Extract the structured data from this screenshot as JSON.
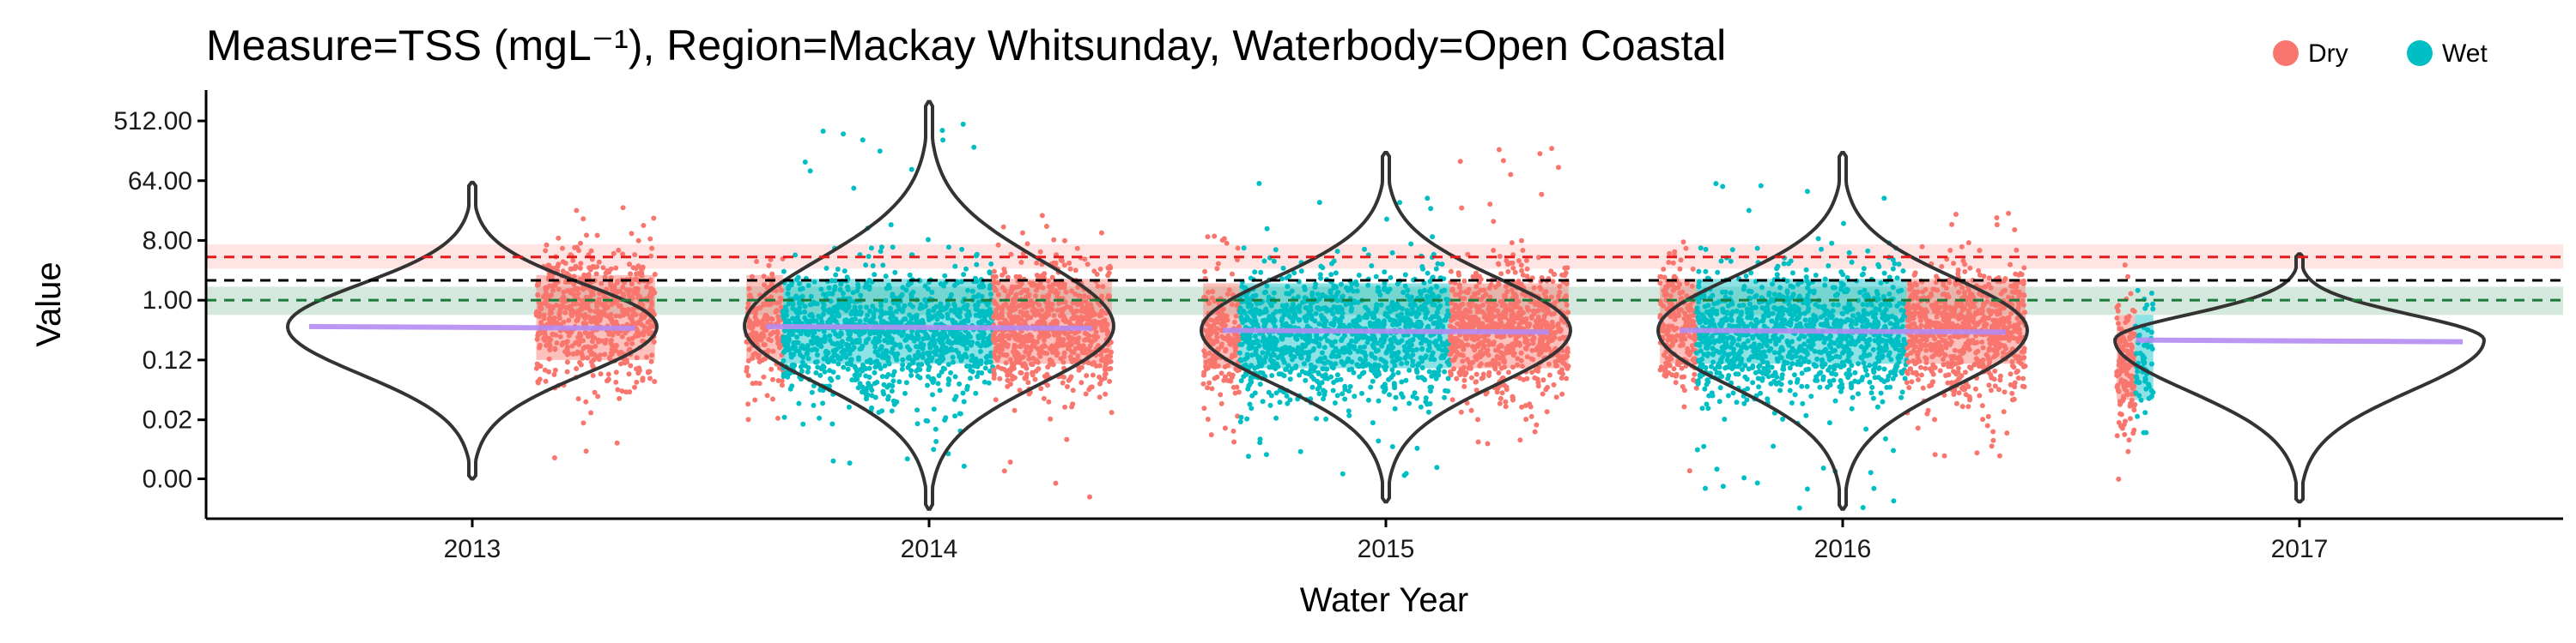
{
  "chart_data": {
    "type": "scatter",
    "title": "Measure=TSS (mgL⁻¹), Region=Mackay Whitsunday, Waterbody=Open Coastal",
    "xlabel": "Water Year",
    "ylabel": "Value",
    "x_scale": "water year",
    "y_scale": "log2",
    "x_ticks": [
      "2013",
      "2014",
      "2015",
      "2016",
      "2017"
    ],
    "y_ticks": [
      {
        "label": "512.00",
        "value": 512
      },
      {
        "label": "64.00",
        "value": 64
      },
      {
        "label": "8.00",
        "value": 8
      },
      {
        "label": "1.00",
        "value": 1
      },
      {
        "label": "0.12",
        "value": 0.125
      },
      {
        "label": "0.02",
        "value": 0.0156
      },
      {
        "label": "0.00",
        "value": 0.002
      }
    ],
    "ylim": [
      0.0005,
      1500
    ],
    "grid": false,
    "legend": {
      "position": "top-right",
      "entries": [
        {
          "name": "Dry",
          "color": "#F8766D"
        },
        {
          "name": "Wet",
          "color": "#00BFC4"
        }
      ]
    },
    "reference_lines": [
      {
        "color": "#e41a1c",
        "value": 4.5,
        "band": [
          3.0,
          7.0
        ],
        "band_color": "#F8766D",
        "style": "dashed"
      },
      {
        "color": "#000000",
        "value": 2.0,
        "style": "dashed"
      },
      {
        "color": "#1b7a3a",
        "value": 1.0,
        "band": [
          0.6,
          1.6
        ],
        "band_color": "#2E8B57",
        "style": "dashed"
      }
    ],
    "season_blocks": [
      {
        "season": "Dry",
        "start_year": 2013.14,
        "end_year": 2013.4,
        "median": 0.4
      },
      {
        "season": "Dry",
        "start_year": 2013.6,
        "end_year": 2013.68,
        "median": 0.4
      },
      {
        "season": "Wet",
        "start_year": 2013.68,
        "end_year": 2014.14,
        "median": 0.35
      },
      {
        "season": "Dry",
        "start_year": 2014.14,
        "end_year": 2014.4,
        "median": 0.35
      },
      {
        "season": "Dry",
        "start_year": 2014.6,
        "end_year": 2014.68,
        "median": 0.3
      },
      {
        "season": "Wet",
        "start_year": 2014.68,
        "end_year": 2015.14,
        "median": 0.3
      },
      {
        "season": "Dry",
        "start_year": 2015.14,
        "end_year": 2015.4,
        "median": 0.3
      },
      {
        "season": "Dry",
        "start_year": 2015.6,
        "end_year": 2015.68,
        "median": 0.35
      },
      {
        "season": "Wet",
        "start_year": 2015.68,
        "end_year": 2016.14,
        "median": 0.35
      },
      {
        "season": "Dry",
        "start_year": 2016.14,
        "end_year": 2016.4,
        "median": 0.35
      },
      {
        "season": "Dry",
        "start_year": 2016.6,
        "end_year": 2016.64,
        "median": 0.1
      },
      {
        "season": "Wet",
        "start_year": 2016.64,
        "end_year": 2016.68,
        "median": 0.1
      }
    ],
    "violins": [
      {
        "year": 2013,
        "median": 0.4,
        "low": 0.002,
        "high": 60
      },
      {
        "year": 2014,
        "median": 0.4,
        "low": 0.0007,
        "high": 1000
      },
      {
        "year": 2015,
        "median": 0.35,
        "low": 0.0009,
        "high": 170
      },
      {
        "year": 2016,
        "median": 0.35,
        "low": 0.0007,
        "high": 170
      },
      {
        "year": 2017,
        "median": 0.25,
        "low": 0.0009,
        "high": 5
      }
    ],
    "point_clouds": [
      {
        "season": "Dry",
        "start_year": 2013.14,
        "end_year": 2013.4,
        "center": 0.6,
        "low": 0.003,
        "high": 25,
        "count": 700
      },
      {
        "season": "Dry",
        "start_year": 2013.6,
        "end_year": 2013.68,
        "center": 0.3,
        "low": 0.003,
        "high": 8,
        "count": 180
      },
      {
        "season": "Wet",
        "start_year": 2013.68,
        "end_year": 2014.14,
        "center": 0.3,
        "low": 0.003,
        "high": 600,
        "count": 1200
      },
      {
        "season": "Dry",
        "start_year": 2014.14,
        "end_year": 2014.4,
        "center": 0.35,
        "low": 0.0008,
        "high": 25,
        "count": 800
      },
      {
        "season": "Dry",
        "start_year": 2014.6,
        "end_year": 2014.68,
        "center": 0.3,
        "low": 0.004,
        "high": 10,
        "count": 200
      },
      {
        "season": "Wet",
        "start_year": 2014.68,
        "end_year": 2015.14,
        "center": 0.3,
        "low": 0.002,
        "high": 60,
        "count": 1200
      },
      {
        "season": "Dry",
        "start_year": 2015.14,
        "end_year": 2015.4,
        "center": 0.35,
        "low": 0.006,
        "high": 250,
        "count": 800
      },
      {
        "season": "Dry",
        "start_year": 2015.6,
        "end_year": 2015.68,
        "center": 0.35,
        "low": 0.002,
        "high": 50,
        "count": 220
      },
      {
        "season": "Wet",
        "start_year": 2015.68,
        "end_year": 2016.14,
        "center": 0.3,
        "low": 0.0006,
        "high": 60,
        "count": 1200
      },
      {
        "season": "Dry",
        "start_year": 2016.14,
        "end_year": 2016.4,
        "center": 0.35,
        "low": 0.004,
        "high": 25,
        "count": 800
      },
      {
        "season": "Dry",
        "start_year": 2016.6,
        "end_year": 2016.64,
        "center": 0.1,
        "low": 0.0007,
        "high": 6,
        "count": 150
      },
      {
        "season": "Wet",
        "start_year": 2016.64,
        "end_year": 2016.68,
        "center": 0.1,
        "low": 0.01,
        "high": 2,
        "count": 60
      }
    ]
  }
}
